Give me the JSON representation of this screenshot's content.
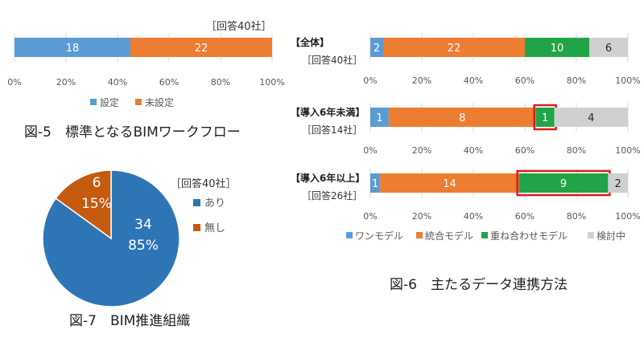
{
  "fig5": {
    "caption": "図-5　標準となるBIMワークフロー",
    "respondents": "［回答40社］"
  },
  "fig6": {
    "caption": "図-6　主たるデータ連携方法"
  },
  "fig7": {
    "caption": "図-7　BIM推進組織",
    "respondents": "［回答40社］"
  },
  "chart_data": [
    {
      "id": "fig5",
      "type": "bar",
      "orientation": "horizontal",
      "stacked": "percent",
      "title": "図-5　標準となるBIMワークフロー",
      "categories": [
        ""
      ],
      "series": [
        {
          "name": "設定",
          "values": [
            18
          ],
          "color": "#5b9bd5"
        },
        {
          "name": "未設定",
          "values": [
            22
          ],
          "color": "#ed7d31"
        }
      ],
      "xlim": [
        0,
        100
      ],
      "xticks": [
        "0%",
        "20%",
        "40%",
        "60%",
        "80%",
        "100%"
      ],
      "legend": "bottom"
    },
    {
      "id": "fig6",
      "type": "bar",
      "orientation": "horizontal",
      "stacked": "percent",
      "title": "図-6　主たるデータ連携方法",
      "panels": [
        {
          "label": "【全体】",
          "respondents": "［回答40社］",
          "values": [
            2,
            22,
            10,
            6
          ],
          "highlight": null
        },
        {
          "label": "【導入6年未満】",
          "respondents": "［回答14社］",
          "values": [
            1,
            8,
            1,
            4
          ],
          "highlight": 2
        },
        {
          "label": "【導入6年以上】",
          "respondents": "［回答26社］",
          "values": [
            1,
            14,
            9,
            2
          ],
          "highlight": 2
        }
      ],
      "series": [
        {
          "name": "ワンモデル",
          "color": "#5b9bd5"
        },
        {
          "name": "統合モデル",
          "color": "#ed7d31"
        },
        {
          "name": "重ね合わせモデル",
          "color": "#21a447"
        },
        {
          "name": "検討中",
          "color": "#d0d0d0"
        }
      ],
      "highlight_color": "#e0191d",
      "xlim": [
        0,
        100
      ],
      "xticks": [
        "0%",
        "20%",
        "40%",
        "60%",
        "80%",
        "100%"
      ],
      "legend": "bottom"
    },
    {
      "id": "fig7",
      "type": "pie",
      "title": "図-7　BIM推進組織",
      "slices": [
        {
          "name": "あり",
          "value": 34,
          "percent": "85%",
          "color": "#2e75b6"
        },
        {
          "name": "無し",
          "value": 6,
          "percent": "15%",
          "color": "#c55a11"
        }
      ],
      "legend": "right"
    }
  ]
}
